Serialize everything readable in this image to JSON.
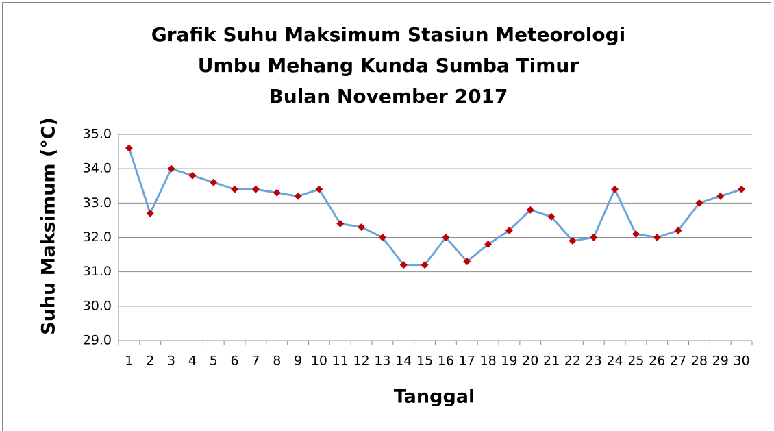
{
  "chart_data": {
    "type": "line",
    "title": [
      "Grafik  Suhu Maksimum Stasiun Meteorologi",
      "Umbu Mehang Kunda Sumba Timur",
      "Bulan November 2017"
    ],
    "y_label": "Suhu Maksimum (°C)",
    "x_label": "Tanggal",
    "categories": [
      "1",
      "2",
      "3",
      "4",
      "5",
      "6",
      "7",
      "8",
      "9",
      "10",
      "11",
      "12",
      "13",
      "14",
      "15",
      "16",
      "17",
      "18",
      "19",
      "20",
      "21",
      "22",
      "23",
      "24",
      "25",
      "26",
      "27",
      "28",
      "29",
      "30"
    ],
    "series": [
      {
        "color": "#6aa6dc",
        "marker_color": "#c00000",
        "values": [
          34.6,
          32.7,
          34.0,
          33.8,
          33.6,
          33.4,
          33.4,
          33.3,
          33.2,
          33.4,
          32.4,
          32.3,
          32.0,
          31.2,
          31.2,
          32.0,
          31.3,
          31.8,
          32.2,
          32.8,
          32.6,
          31.9,
          32.0,
          33.4,
          32.1,
          32.0,
          32.2,
          33.0,
          33.2,
          33.4
        ]
      }
    ],
    "ylim": [
      29,
      35
    ],
    "yticks": [
      {
        "value": 29,
        "label": "29.0"
      },
      {
        "value": 30,
        "label": "30.0"
      },
      {
        "value": 31,
        "label": "31.0"
      },
      {
        "value": 32,
        "label": "32.0"
      },
      {
        "value": 33,
        "label": "33.0"
      },
      {
        "value": 34,
        "label": "34.0"
      },
      {
        "value": 35,
        "label": "35.0"
      }
    ],
    "grid": true
  }
}
